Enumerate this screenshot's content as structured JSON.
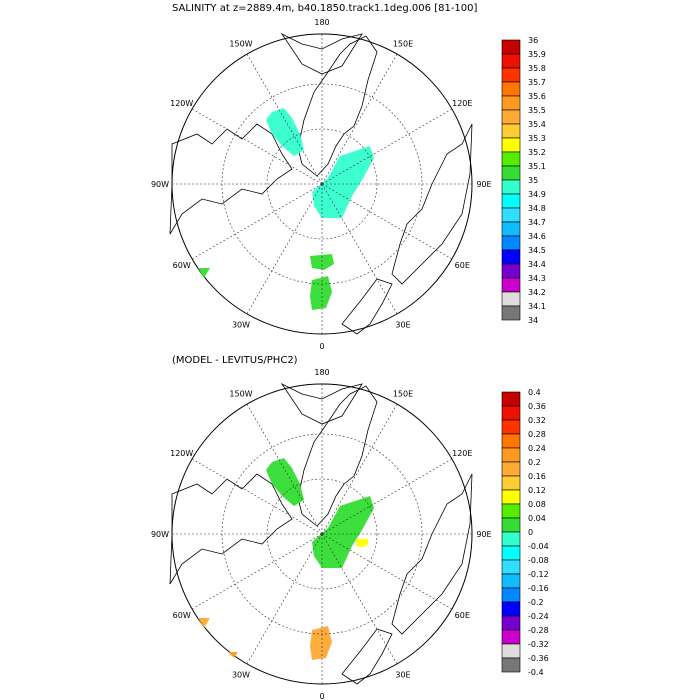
{
  "top_panel": {
    "title": "SALINITY at z=2889.4m, b40.1850.track1.1deg.006 [81-100]",
    "lon_labels": [
      "180",
      "150E",
      "120E",
      "90E",
      "60E",
      "30E",
      "0",
      "30W",
      "60W",
      "90W",
      "120W",
      "150W"
    ],
    "colorbar": {
      "labels": [
        "36",
        "35.9",
        "35.8",
        "35.7",
        "35.6",
        "35.5",
        "35.4",
        "35.3",
        "35.2",
        "35.1",
        "35",
        "34.9",
        "34.8",
        "34.7",
        "34.6",
        "34.5",
        "34.4",
        "34.3",
        "34.2",
        "34.1",
        "34"
      ],
      "colors": [
        "#c80000",
        "#ee1100",
        "#ff3300",
        "#ff7700",
        "#ff9922",
        "#ffaa33",
        "#ffcc33",
        "#ffff00",
        "#55ee00",
        "#33dd33",
        "#33ffcc",
        "#00ffff",
        "#33ddff",
        "#11bbff",
        "#0088ff",
        "#0000ff",
        "#7700cc",
        "#cc00cc",
        "#dddddd",
        "#777777"
      ]
    }
  },
  "bottom_panel": {
    "title": "(MODEL - LEVITUS/PHC2)",
    "lon_labels": [
      "180",
      "150E",
      "120E",
      "90E",
      "60E",
      "30E",
      "0",
      "30W",
      "60W",
      "90W",
      "120W",
      "150W"
    ],
    "colorbar": {
      "labels": [
        "0.4",
        "0.36",
        "0.32",
        "0.28",
        "0.24",
        "0.2",
        "0.16",
        "0.12",
        "0.08",
        "0.04",
        "0",
        "-0.04",
        "-0.08",
        "-0.12",
        "-0.16",
        "-0.2",
        "-0.24",
        "-0.28",
        "-0.32",
        "-0.36",
        "-0.4"
      ],
      "colors": [
        "#c80000",
        "#ee1100",
        "#ff3300",
        "#ff7700",
        "#ff9922",
        "#ffaa33",
        "#ffcc33",
        "#ffff00",
        "#55ee00",
        "#33dd33",
        "#33ffcc",
        "#00ffff",
        "#33ddff",
        "#11bbff",
        "#0088ff",
        "#0000ff",
        "#7700cc",
        "#cc00cc",
        "#dddddd",
        "#777777"
      ]
    }
  },
  "map_regions": {
    "top": [
      {
        "name": "salinity-patch-canada-basin",
        "color": "#33ffcc"
      },
      {
        "name": "salinity-patch-eurasian-basin",
        "color": "#33ffcc"
      },
      {
        "name": "salinity-patch-barents",
        "color": "#33dd33"
      },
      {
        "name": "salinity-patch-norwegian-sea",
        "color": "#33dd33"
      },
      {
        "name": "salinity-patch-labrador",
        "color": "#33dd33"
      }
    ],
    "bottom": [
      {
        "name": "diff-patch-canada-basin",
        "color": "#33dd33"
      },
      {
        "name": "diff-patch-eurasian-basin",
        "color": "#33dd33"
      },
      {
        "name": "diff-patch-laptev-yellow",
        "color": "#ffff00"
      },
      {
        "name": "diff-patch-barents",
        "color": "#ffaa33"
      },
      {
        "name": "diff-patch-norwegian-sea",
        "color": "#ffaa33"
      },
      {
        "name": "diff-patch-labrador",
        "color": "#ff9922"
      }
    ]
  }
}
